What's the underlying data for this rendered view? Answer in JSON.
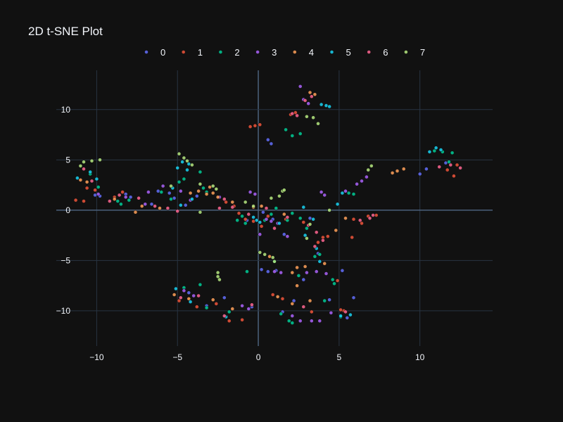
{
  "chart_data": {
    "type": "scatter",
    "title": "2D t-SNE Plot",
    "xlabel": "",
    "ylabel": "",
    "xlim": [
      -12.5,
      14.5
    ],
    "ylim": [
      -13.5,
      13.9
    ],
    "x_ticks": [
      -10,
      -5,
      0,
      5,
      10
    ],
    "y_ticks": [
      -10,
      -5,
      0,
      5,
      10
    ],
    "x_tick_labels": [
      "−10",
      "−5",
      "0",
      "5",
      "10"
    ],
    "y_tick_labels": [
      "−10",
      "−5",
      "0",
      "5",
      "10"
    ],
    "grid": true,
    "legend_position": "top",
    "background": "#111111",
    "series": [
      {
        "name": "0",
        "color": "#636efa",
        "points": [
          [
            -10.1,
            1.5
          ],
          [
            -9.8,
            1.4
          ],
          [
            -8.2,
            1.6
          ],
          [
            -7.9,
            1.3
          ],
          [
            -6.6,
            0.6
          ],
          [
            -6.2,
            1.9
          ],
          [
            -5.5,
            1.7
          ],
          [
            -5.2,
            1.2
          ],
          [
            -4.5,
            0.5
          ],
          [
            -3.8,
            1.4
          ],
          [
            0.6,
            7.0
          ],
          [
            0.8,
            6.6
          ],
          [
            0.3,
            -0.2
          ],
          [
            0.9,
            -0.9
          ],
          [
            1.6,
            -2.4
          ],
          [
            3.2,
            -0.8
          ],
          [
            3.7,
            -4.3
          ],
          [
            5.2,
            -6.0
          ],
          [
            5.5,
            -10.7
          ],
          [
            5.9,
            -8.7
          ],
          [
            10.0,
            3.6
          ],
          [
            10.4,
            4.1
          ],
          [
            11.6,
            4.7
          ],
          [
            0.2,
            -5.9
          ],
          [
            0.6,
            -6.1
          ],
          [
            -0.7,
            -1.0
          ],
          [
            4.4,
            -8.9
          ],
          [
            1.5,
            -10.1
          ],
          [
            2.8,
            -6.9
          ],
          [
            -0.4,
            -9.6
          ],
          [
            -2.1,
            -8.7
          ],
          [
            -4.3,
            -8.2
          ],
          [
            -3.2,
            -9.5
          ],
          [
            1.1,
            -6.0
          ],
          [
            2.2,
            -9.0
          ]
        ]
      },
      {
        "name": "1",
        "color": "#ef553b",
        "points": [
          [
            -11.3,
            1.0
          ],
          [
            -10.8,
            0.9
          ],
          [
            -10.6,
            2.2
          ],
          [
            -10.1,
            2.0
          ],
          [
            -8.9,
            1.3
          ],
          [
            -8.4,
            1.8
          ],
          [
            -0.5,
            8.3
          ],
          [
            -0.2,
            8.4
          ],
          [
            0.1,
            8.5
          ],
          [
            -2.0,
            0.8
          ],
          [
            -1.5,
            0.4
          ],
          [
            -0.8,
            -0.9
          ],
          [
            0.2,
            -1.6
          ],
          [
            2.0,
            9.5
          ],
          [
            2.3,
            9.7
          ],
          [
            3.7,
            -3.2
          ],
          [
            4.0,
            -2.7
          ],
          [
            4.3,
            -2.6
          ],
          [
            4.9,
            -7.0
          ],
          [
            5.3,
            -10.0
          ],
          [
            5.8,
            -2.7
          ],
          [
            5.9,
            -0.9
          ],
          [
            6.8,
            -0.6
          ],
          [
            7.3,
            -0.5
          ],
          [
            11.7,
            4.0
          ],
          [
            12.1,
            3.4
          ],
          [
            12.3,
            4.5
          ],
          [
            -1.8,
            -11.0
          ],
          [
            -1.0,
            -10.9
          ],
          [
            0.9,
            -8.4
          ],
          [
            1.5,
            -8.8
          ],
          [
            3.3,
            -10.1
          ],
          [
            -4.9,
            -9.0
          ],
          [
            -3.8,
            -9.6
          ],
          [
            -2.6,
            -9.3
          ],
          [
            6.4,
            -1.3
          ],
          [
            5.1,
            -9.9
          ],
          [
            -1.2,
            -0.3
          ],
          [
            0.6,
            -0.6
          ],
          [
            1.7,
            -0.9
          ],
          [
            2.8,
            -1.2
          ],
          [
            -0.3,
            -1.1
          ]
        ]
      },
      {
        "name": "2",
        "color": "#00cc96",
        "points": [
          [
            -10.4,
            3.6
          ],
          [
            -9.9,
            2.3
          ],
          [
            -8.7,
            0.9
          ],
          [
            -8.5,
            0.6
          ],
          [
            -8.0,
            1.0
          ],
          [
            -6.0,
            1.8
          ],
          [
            -5.4,
            1.1
          ],
          [
            -4.9,
            2.8
          ],
          [
            -4.6,
            3.1
          ],
          [
            -3.6,
            3.8
          ],
          [
            -3.4,
            2.2
          ],
          [
            1.7,
            8.0
          ],
          [
            2.1,
            7.4
          ],
          [
            2.6,
            7.6
          ],
          [
            -1.3,
            -1.0
          ],
          [
            -0.8,
            -1.3
          ],
          [
            0.4,
            -1.0
          ],
          [
            1.1,
            0.2
          ],
          [
            2.1,
            -0.3
          ],
          [
            2.6,
            -0.8
          ],
          [
            3.0,
            -1.8
          ],
          [
            3.5,
            -4.6
          ],
          [
            3.8,
            -4.4
          ],
          [
            4.7,
            -7.3
          ],
          [
            5.1,
            -10.6
          ],
          [
            5.6,
            1.7
          ],
          [
            5.9,
            1.6
          ],
          [
            10.9,
            5.9
          ],
          [
            11.4,
            5.8
          ],
          [
            11.8,
            4.8
          ],
          [
            12.0,
            5.7
          ],
          [
            -4.6,
            -7.7
          ],
          [
            -3.6,
            -7.4
          ],
          [
            -3.2,
            -9.7
          ],
          [
            -1.8,
            -10.1
          ],
          [
            1.4,
            -10.3
          ],
          [
            1.9,
            -11.0
          ],
          [
            2.1,
            -11.2
          ],
          [
            4.1,
            -9.0
          ],
          [
            -0.7,
            -6.1
          ],
          [
            1.0,
            -5.1
          ],
          [
            2.5,
            -6.5
          ],
          [
            4.6,
            -6.9
          ],
          [
            -1.0,
            -0.6
          ],
          [
            0.8,
            -0.4
          ],
          [
            1.8,
            -1.0
          ],
          [
            -3.2,
            1.8
          ]
        ]
      },
      {
        "name": "3",
        "color": "#ab63fa",
        "points": [
          [
            -9.9,
            1.6
          ],
          [
            -8.2,
            1.3
          ],
          [
            -7.0,
            0.6
          ],
          [
            -6.8,
            1.8
          ],
          [
            -5.9,
            2.4
          ],
          [
            -4.8,
            1.9
          ],
          [
            -4.2,
            1.0
          ],
          [
            -2.4,
            1.3
          ],
          [
            2.6,
            12.3
          ],
          [
            2.8,
            11.0
          ],
          [
            3.1,
            10.6
          ],
          [
            -0.5,
            1.8
          ],
          [
            -0.2,
            1.6
          ],
          [
            0.5,
            -0.9
          ],
          [
            1.2,
            -1.3
          ],
          [
            1.8,
            -2.6
          ],
          [
            3.9,
            1.8
          ],
          [
            4.1,
            1.5
          ],
          [
            5.4,
            1.9
          ],
          [
            6.1,
            2.6
          ],
          [
            6.4,
            2.9
          ],
          [
            6.7,
            3.3
          ],
          [
            3.0,
            -6.2
          ],
          [
            3.6,
            -6.1
          ],
          [
            4.2,
            -6.3
          ],
          [
            2.6,
            -11.0
          ],
          [
            3.3,
            -11.0
          ],
          [
            3.8,
            -11.0
          ],
          [
            4.5,
            -10.2
          ],
          [
            -1.0,
            -9.5
          ],
          [
            -0.6,
            -9.8
          ],
          [
            1.0,
            -6.1
          ],
          [
            2.1,
            -10.5
          ],
          [
            -4.6,
            -8.0
          ],
          [
            -4.0,
            -8.5
          ],
          [
            0.1,
            -2.4
          ],
          [
            1.4,
            -6.2
          ],
          [
            0.8,
            -1.1
          ]
        ]
      },
      {
        "name": "4",
        "color": "#ffa15a",
        "points": [
          [
            -11.0,
            3.0
          ],
          [
            -10.6,
            2.8
          ],
          [
            -8.9,
            1.1
          ],
          [
            -7.6,
            -0.2
          ],
          [
            -7.2,
            0.4
          ],
          [
            -6.1,
            0.2
          ],
          [
            -4.2,
            1.7
          ],
          [
            -3.7,
            1.9
          ],
          [
            -3.2,
            1.6
          ],
          [
            -2.8,
            1.7
          ],
          [
            -2.5,
            1.3
          ],
          [
            3.2,
            11.7
          ],
          [
            3.5,
            11.5
          ],
          [
            -0.3,
            0.3
          ],
          [
            0.2,
            0.4
          ],
          [
            1.6,
            -0.4
          ],
          [
            2.1,
            -6.2
          ],
          [
            2.4,
            -5.7
          ],
          [
            4.1,
            -5.3
          ],
          [
            4.8,
            -2.0
          ],
          [
            5.4,
            -0.8
          ],
          [
            8.3,
            3.7
          ],
          [
            8.6,
            3.9
          ],
          [
            9.0,
            4.1
          ],
          [
            -5.2,
            -8.4
          ],
          [
            -4.3,
            -8.8
          ],
          [
            -2.8,
            -8.9
          ],
          [
            1.2,
            -8.6
          ],
          [
            2.1,
            -9.3
          ],
          [
            2.4,
            -7.5
          ],
          [
            3.2,
            -9.0
          ],
          [
            -1.6,
            -9.8
          ],
          [
            0.7,
            -4.6
          ],
          [
            2.9,
            -5.6
          ],
          [
            -1.6,
            0.8
          ],
          [
            -3.0,
            2.3
          ]
        ]
      },
      {
        "name": "5",
        "color": "#19d3f3",
        "points": [
          [
            -11.2,
            3.2
          ],
          [
            -10.4,
            3.8
          ],
          [
            -10.0,
            3.1
          ],
          [
            -5.0,
            4.2
          ],
          [
            -4.7,
            4.8
          ],
          [
            -4.4,
            4.0
          ],
          [
            -5.3,
            2.2
          ],
          [
            -4.8,
            0.5
          ],
          [
            -4.1,
            1.1
          ],
          [
            -4.3,
            4.6
          ],
          [
            3.9,
            10.5
          ],
          [
            4.2,
            10.4
          ],
          [
            4.4,
            10.3
          ],
          [
            -0.3,
            -0.7
          ],
          [
            0.1,
            -1.2
          ],
          [
            1.3,
            -1.3
          ],
          [
            2.8,
            0.3
          ],
          [
            3.4,
            -0.9
          ],
          [
            3.6,
            -3.8
          ],
          [
            3.8,
            -5.1
          ],
          [
            4.9,
            0.6
          ],
          [
            5.2,
            1.7
          ],
          [
            10.6,
            5.8
          ],
          [
            11.0,
            6.2
          ],
          [
            11.3,
            6.0
          ],
          [
            -5.1,
            -7.8
          ],
          [
            -4.2,
            -9.1
          ],
          [
            -2.0,
            -10.6
          ],
          [
            5.1,
            -10.5
          ],
          [
            5.7,
            -10.4
          ],
          [
            -0.1,
            -1.0
          ],
          [
            2.9,
            -2.5
          ]
        ]
      },
      {
        "name": "6",
        "color": "#ff6692",
        "points": [
          [
            -10.8,
            4.1
          ],
          [
            -10.3,
            2.9
          ],
          [
            -9.2,
            0.9
          ],
          [
            -8.6,
            1.5
          ],
          [
            -7.4,
            1.2
          ],
          [
            -6.4,
            0.4
          ],
          [
            -5.6,
            0.2
          ],
          [
            -5.0,
            -0.1
          ],
          [
            2.1,
            9.6
          ],
          [
            2.4,
            9.4
          ],
          [
            2.9,
            10.9
          ],
          [
            3.3,
            11.3
          ],
          [
            -2.1,
            1.1
          ],
          [
            -1.6,
            0.3
          ],
          [
            -0.6,
            -0.4
          ],
          [
            0.5,
            0.2
          ],
          [
            1.8,
            -0.7
          ],
          [
            3.1,
            -1.5
          ],
          [
            3.5,
            -3.6
          ],
          [
            4.0,
            -3.0
          ],
          [
            6.3,
            -1.0
          ],
          [
            6.9,
            -0.8
          ],
          [
            7.1,
            -0.5
          ],
          [
            11.2,
            4.3
          ],
          [
            11.9,
            4.5
          ],
          [
            12.5,
            4.2
          ],
          [
            -4.8,
            -8.7
          ],
          [
            -3.7,
            -8.5
          ],
          [
            -2.1,
            -10.5
          ],
          [
            -0.4,
            -9.4
          ],
          [
            2.8,
            -9.6
          ],
          [
            5.4,
            -10.1
          ],
          [
            -2.4,
            0.2
          ],
          [
            1.0,
            -1.8
          ],
          [
            3.6,
            -2.2
          ]
        ]
      },
      {
        "name": "7",
        "color": "#b6e880",
        "points": [
          [
            -11.0,
            4.4
          ],
          [
            -10.8,
            4.8
          ],
          [
            -10.3,
            4.9
          ],
          [
            -9.8,
            5.0
          ],
          [
            -4.9,
            5.6
          ],
          [
            -4.6,
            5.2
          ],
          [
            -4.4,
            4.9
          ],
          [
            -4.1,
            4.5
          ],
          [
            -3.6,
            2.6
          ],
          [
            -2.8,
            2.4
          ],
          [
            -2.6,
            2.1
          ],
          [
            -3.6,
            -0.2
          ],
          [
            3.0,
            9.3
          ],
          [
            3.4,
            9.2
          ],
          [
            3.7,
            8.6
          ],
          [
            0.1,
            -4.2
          ],
          [
            0.4,
            -4.4
          ],
          [
            0.9,
            -4.7
          ],
          [
            1.0,
            -5.1
          ],
          [
            1.3,
            1.4
          ],
          [
            1.5,
            1.9
          ],
          [
            1.6,
            2.0
          ],
          [
            3.0,
            -2.8
          ],
          [
            3.2,
            -1.4
          ],
          [
            6.8,
            4.0
          ],
          [
            7.0,
            4.4
          ],
          [
            -2.5,
            -6.2
          ],
          [
            -2.5,
            -6.6
          ],
          [
            -2.4,
            -6.9
          ],
          [
            -0.8,
            0.8
          ],
          [
            -0.3,
            0.4
          ],
          [
            0.8,
            1.2
          ],
          [
            4.4,
            0.0
          ],
          [
            -5.4,
            2.4
          ]
        ]
      }
    ]
  }
}
